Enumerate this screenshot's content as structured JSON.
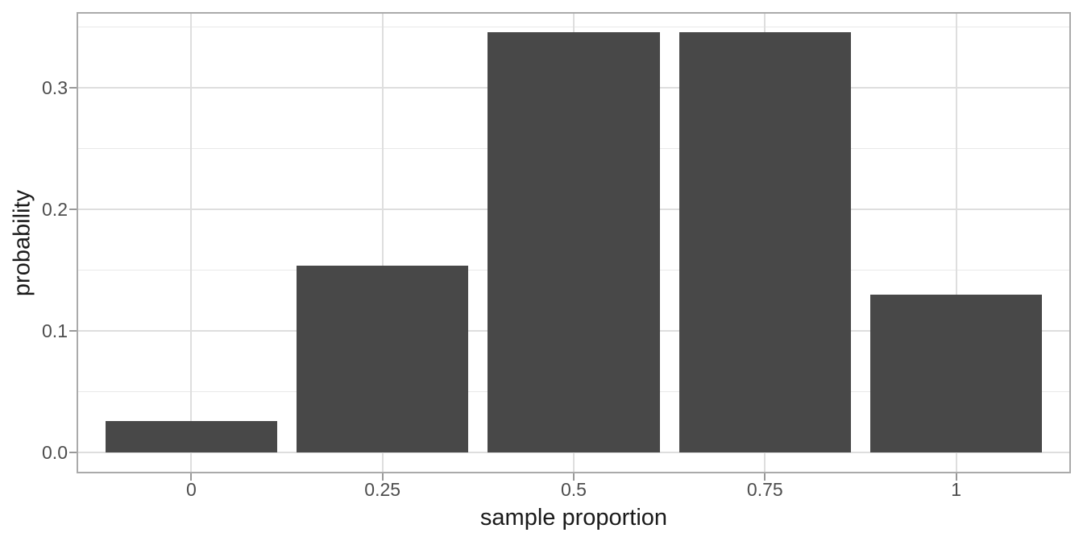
{
  "chart_data": {
    "type": "bar",
    "title": "",
    "xlabel": "sample proportion",
    "ylabel": "probability",
    "categories": [
      0,
      0.25,
      0.5,
      0.75,
      1
    ],
    "values": [
      0.0256,
      0.1536,
      0.3456,
      0.3456,
      0.1296
    ],
    "x_tick_labels": [
      "0",
      "0.25",
      "0.5",
      "0.75",
      "1"
    ],
    "y_tick_values": [
      0.0,
      0.1,
      0.2,
      0.3
    ],
    "y_tick_labels": [
      "0.0",
      "0.1",
      "0.2",
      "0.3"
    ],
    "y_minor_grid_values": [
      0.05,
      0.15,
      0.25,
      0.35
    ],
    "xlim": [
      -0.15,
      1.15
    ],
    "ylim": [
      -0.0173,
      0.3622
    ],
    "bar_width": 0.225,
    "grid": "major x+y, minor y only",
    "legend": "none",
    "colors": {
      "bar_fill": "#484848",
      "grid_major": "#dedede",
      "grid_minor": "#e9e9e9",
      "panel_border": "#aaaaaa",
      "tick_mark": "#999999",
      "tick_label": "#4d4d4d",
      "axis_title": "#1a1a1a",
      "background": "#ffffff"
    }
  }
}
